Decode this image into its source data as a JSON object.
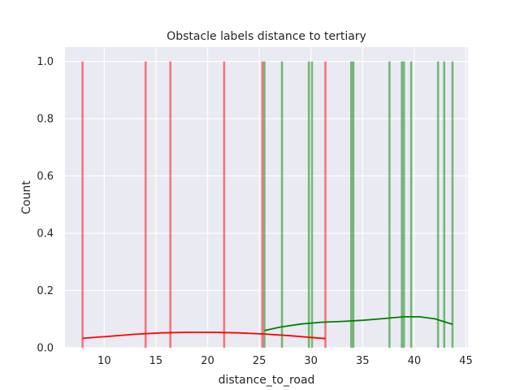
{
  "chart_data": {
    "type": "histogram",
    "title": "Obstacle labels distance to tertiary",
    "xlabel": "distance_to_road",
    "ylabel": "Count",
    "xlim": [
      6.2,
      45.2
    ],
    "ylim": [
      0,
      1.05
    ],
    "x_ticks": [
      10,
      15,
      20,
      25,
      30,
      35,
      40,
      45
    ],
    "y_ticks": [
      0.0,
      0.2,
      0.4,
      0.6,
      0.8,
      1.0
    ],
    "x_tick_labels": [
      "10",
      "15",
      "20",
      "25",
      "30",
      "35",
      "40",
      "45"
    ],
    "y_tick_labels": [
      "0.0",
      "0.2",
      "0.4",
      "0.6",
      "0.8",
      "1.0"
    ],
    "grid": true,
    "background": "#eaeaf2",
    "series": [
      {
        "color": "#ff0000",
        "bar_opacity": 0.5,
        "bars": [
          {
            "x": 7.9,
            "count": 1
          },
          {
            "x": 14.0,
            "count": 1
          },
          {
            "x": 16.4,
            "count": 1
          },
          {
            "x": 21.6,
            "count": 1
          },
          {
            "x": 25.3,
            "count": 1
          },
          {
            "x": 31.4,
            "count": 1
          }
        ],
        "kde": [
          {
            "x": 7.9,
            "y": 0.033
          },
          {
            "x": 10.5,
            "y": 0.04
          },
          {
            "x": 13.0,
            "y": 0.047
          },
          {
            "x": 15.5,
            "y": 0.052
          },
          {
            "x": 18.0,
            "y": 0.054
          },
          {
            "x": 20.5,
            "y": 0.054
          },
          {
            "x": 23.0,
            "y": 0.052
          },
          {
            "x": 25.5,
            "y": 0.048
          },
          {
            "x": 28.0,
            "y": 0.042
          },
          {
            "x": 30.0,
            "y": 0.036
          },
          {
            "x": 31.4,
            "y": 0.032
          }
        ]
      },
      {
        "color": "#008000",
        "bar_opacity": 0.5,
        "bars": [
          {
            "x": 25.5,
            "count": 1
          },
          {
            "x": 27.2,
            "count": 1
          },
          {
            "x": 29.8,
            "count": 1
          },
          {
            "x": 30.1,
            "count": 1
          },
          {
            "x": 33.9,
            "count": 1
          },
          {
            "x": 34.1,
            "count": 1
          },
          {
            "x": 37.6,
            "count": 1
          },
          {
            "x": 38.8,
            "count": 1
          },
          {
            "x": 39.0,
            "count": 1
          },
          {
            "x": 39.7,
            "count": 1
          },
          {
            "x": 42.3,
            "count": 1
          },
          {
            "x": 42.9,
            "count": 1
          },
          {
            "x": 43.7,
            "count": 1
          }
        ],
        "kde": [
          {
            "x": 25.5,
            "y": 0.06
          },
          {
            "x": 27.0,
            "y": 0.072
          },
          {
            "x": 29.0,
            "y": 0.083
          },
          {
            "x": 31.0,
            "y": 0.089
          },
          {
            "x": 33.0,
            "y": 0.092
          },
          {
            "x": 35.0,
            "y": 0.096
          },
          {
            "x": 37.0,
            "y": 0.102
          },
          {
            "x": 39.0,
            "y": 0.108
          },
          {
            "x": 40.5,
            "y": 0.108
          },
          {
            "x": 42.0,
            "y": 0.101
          },
          {
            "x": 43.7,
            "y": 0.082
          }
        ]
      }
    ]
  }
}
